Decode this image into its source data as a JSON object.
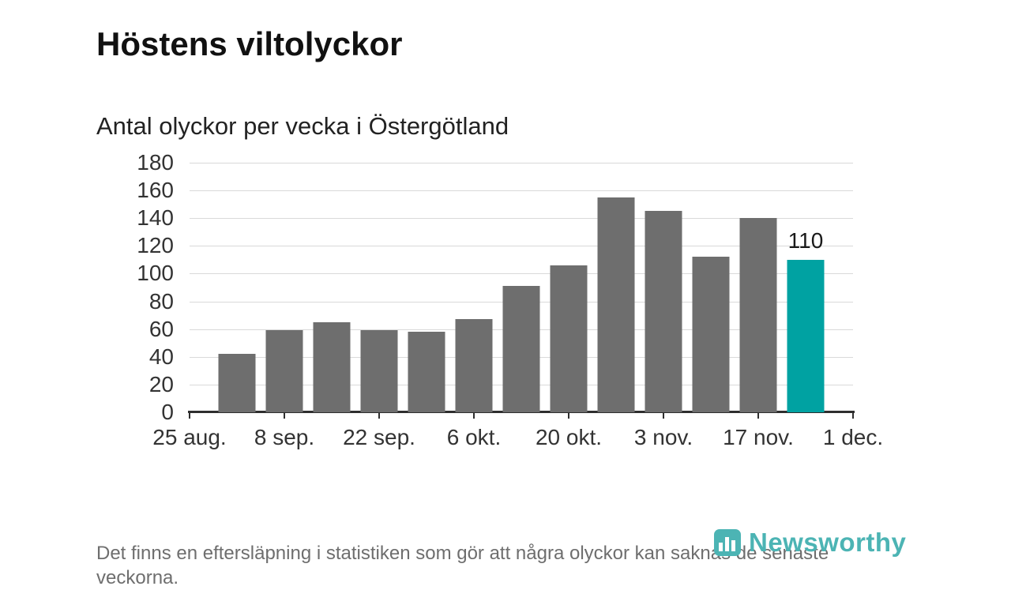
{
  "header": {
    "title": "Höstens viltolyckor",
    "subtitle": "Antal olyckor per vecka i Östergötland"
  },
  "footer": {
    "note": "Det finns en eftersläpning i statistiken som gör att några olyckor kan saknas de senaste veckorna.",
    "brand": "Newsworthy"
  },
  "colors": {
    "bar": "#6e6e6e",
    "highlight": "#00a2a2",
    "brand": "#4cb4b4",
    "grid": "#d9d9d9",
    "axis": "#2e2e2e",
    "muted_text": "#6e6e6e"
  },
  "chart_data": {
    "type": "bar",
    "title": "Höstens viltolyckor",
    "subtitle": "Antal olyckor per vecka i Östergötland",
    "values": [
      42,
      59,
      65,
      59,
      58,
      67,
      91,
      106,
      155,
      145,
      112,
      140,
      110
    ],
    "highlight_index": 12,
    "highlight_label": "110",
    "x_tick_labels": [
      "25 aug.",
      "8 sep.",
      "22 sep.",
      "6 okt.",
      "20 okt.",
      "3 nov.",
      "17 nov.",
      "1 dec."
    ],
    "y_ticks": [
      0,
      20,
      40,
      60,
      80,
      100,
      120,
      140,
      160,
      180
    ],
    "ylim": [
      0,
      180
    ],
    "grid": true,
    "legend": "none",
    "bar_color": "#6e6e6e",
    "highlight_color": "#00a2a2"
  }
}
